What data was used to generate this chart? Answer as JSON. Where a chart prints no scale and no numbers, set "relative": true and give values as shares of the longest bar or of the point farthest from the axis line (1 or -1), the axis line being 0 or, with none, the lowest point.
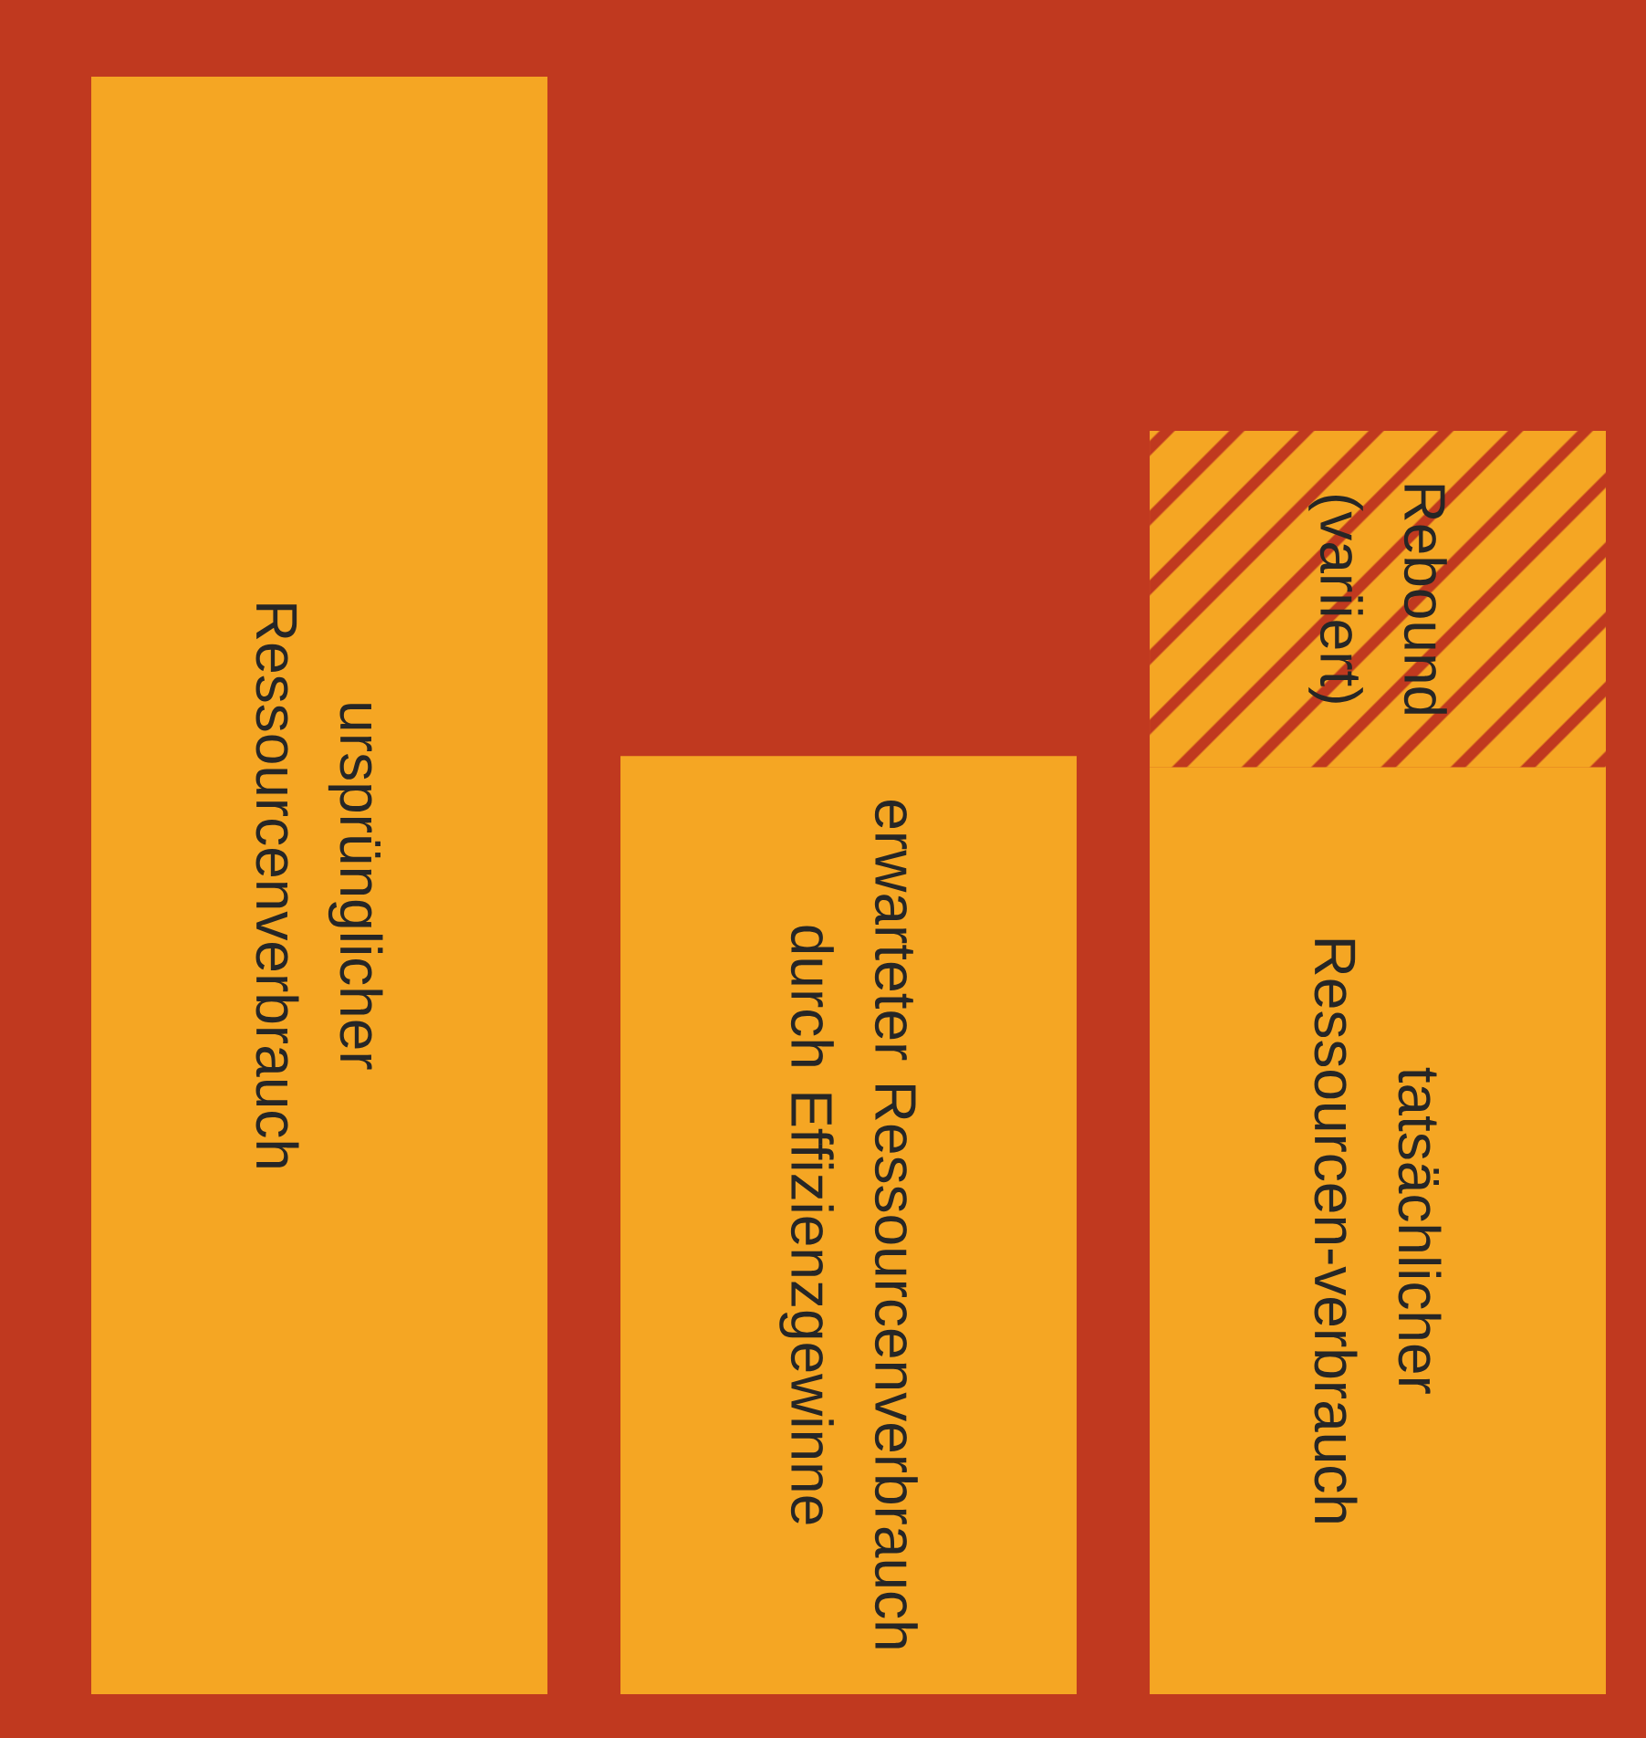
{
  "chart_data": {
    "type": "bar",
    "relative": true,
    "stacked": true,
    "categories": [
      "ursprünglicher Ressourcenverbrauch",
      "erwarteter Ressourcenverbrauch durch Effizienzgewinne",
      "tatsächlicher Ressourcen-verbrauch"
    ],
    "series": [
      {
        "color": "#f5a623",
        "values": [
          1,
          0.58,
          0.573
        ]
      },
      {
        "name": "Rebound (variiert)",
        "color": "#f5a623",
        "values": [
          null,
          null,
          0.208
        ]
      }
    ]
  }
}
